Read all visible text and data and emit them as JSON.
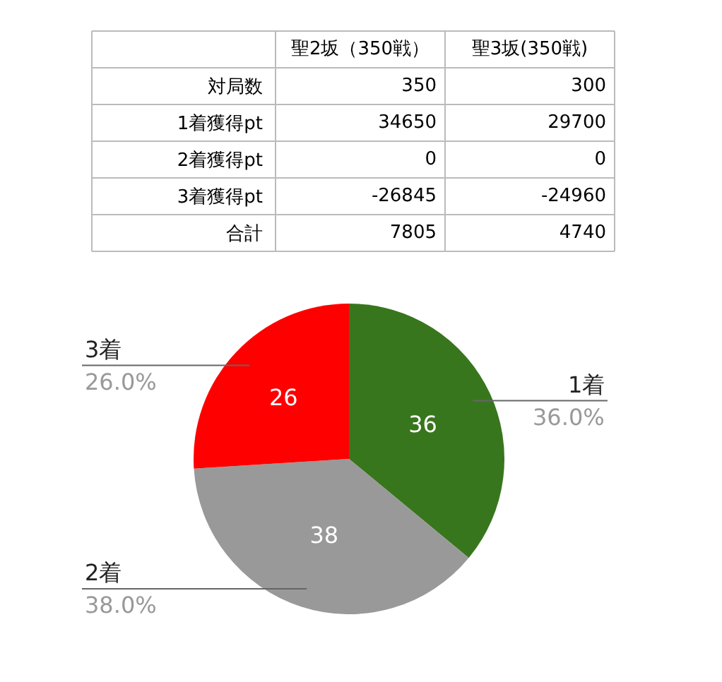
{
  "chart_data": [
    {
      "type": "heatmap",
      "categories": [
        "聖2坂（350戦）",
        "聖3坂(350戦)"
      ],
      "y_categories": [
        "対局数",
        "1着獲得pt",
        "2着獲得pt",
        "3着獲得pt",
        "合計"
      ],
      "cells": [
        [
          350,
          300
        ],
        [
          34650,
          29700
        ],
        [
          0,
          0
        ],
        [
          -26845,
          -24960
        ],
        [
          7805,
          4740
        ]
      ],
      "data_labels": true
    },
    {
      "type": "pie",
      "categories": [
        "1着",
        "2着",
        "3着"
      ],
      "values": [
        36,
        38,
        26
      ],
      "colors": [
        "#38761d",
        "#999999",
        "#ff0000"
      ],
      "data_labels": true,
      "annotations": [
        "36.0%",
        "38.0%",
        "26.0%"
      ]
    }
  ]
}
